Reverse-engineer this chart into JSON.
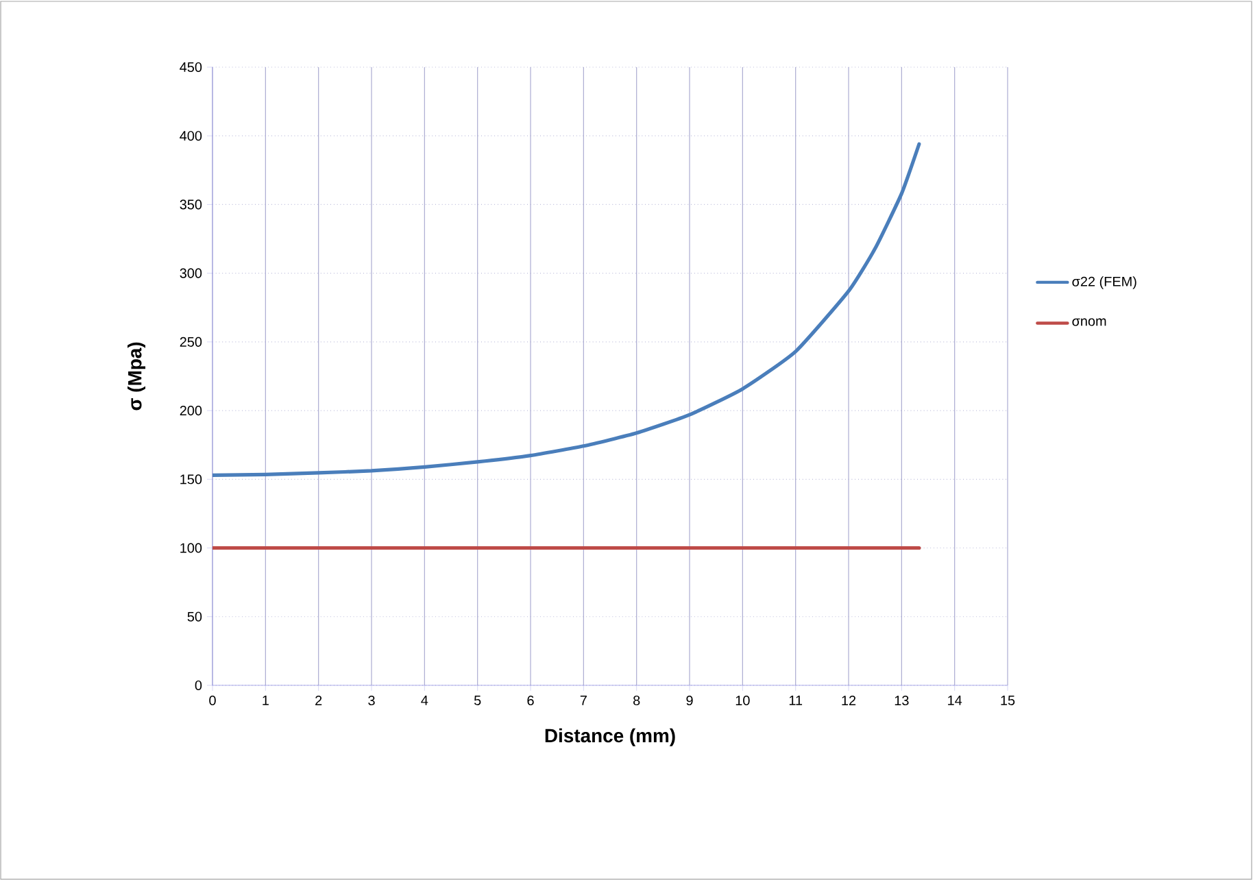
{
  "chart_data": {
    "type": "line",
    "xlabel": "Distance (mm)",
    "ylabel": "σ (Mpa)",
    "xlim": [
      0,
      15
    ],
    "xticks": [
      0,
      1,
      2,
      3,
      4,
      5,
      6,
      7,
      8,
      9,
      10,
      11,
      12,
      13,
      14,
      15
    ],
    "ylim": [
      0,
      450
    ],
    "yticks": [
      0,
      50,
      100,
      150,
      200,
      250,
      300,
      350,
      400,
      450
    ],
    "grid": true,
    "legend": "right",
    "marker": "none",
    "line_style": "solid",
    "series": [
      {
        "name": "σ22 (FEM)",
        "color": "#4a7ebb",
        "x": [
          0,
          1,
          2,
          3,
          4,
          5,
          6,
          7,
          8,
          9,
          10,
          11,
          12,
          12.5,
          13,
          13.33
        ],
        "values": [
          153,
          153.5,
          154.7,
          156.2,
          158.9,
          162.7,
          167.3,
          174.2,
          183.7,
          197,
          215.8,
          243,
          287,
          318,
          358,
          394
        ]
      },
      {
        "name": "σnom",
        "color": "#be4b48",
        "x": [
          0,
          13.33
        ],
        "values": [
          100,
          100
        ]
      }
    ]
  }
}
